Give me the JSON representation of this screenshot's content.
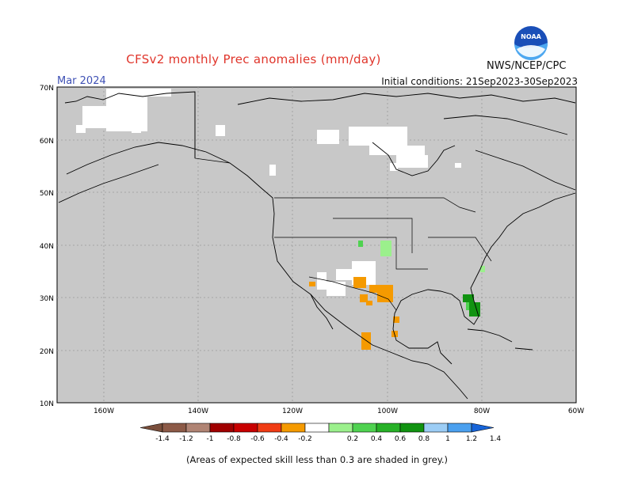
{
  "header": {
    "title": "CFSv2 monthly Prec anomalies (mm/day)",
    "agency": "NWS/NCEP/CPC",
    "logo_text": "NOAA",
    "target_month": "Mar 2024",
    "initial_conditions": "Initial conditions: 21Sep2023-30Sep2023"
  },
  "map": {
    "lat_labels": [
      "70N",
      "60N",
      "50N",
      "40N",
      "30N",
      "20N",
      "10N"
    ],
    "lon_labels": [
      "160W",
      "140W",
      "120W",
      "100W",
      "80W",
      "60W"
    ],
    "land_color": "#c8c8c8",
    "no_skill_color": "#c8c8c8",
    "water_color": "#c8c8c8"
  },
  "legend": {
    "labels": [
      "-1.4",
      "-1.2",
      "-1",
      "-0.8",
      "-0.6",
      "-0.4",
      "-0.2",
      "0.2",
      "0.4",
      "0.6",
      "0.8",
      "1",
      "1.2",
      "1.4"
    ],
    "colors": [
      "#7a4f3c",
      "#8c5a47",
      "#b08474",
      "#a00000",
      "#c80000",
      "#f03c14",
      "#f59a00",
      "#ffffff",
      "#9bf08c",
      "#4fd250",
      "#27b127",
      "#119311",
      "#9ccdf5",
      "#4ba0ef",
      "#1764d8"
    ]
  },
  "footer": {
    "note": "(Areas of expected skill less than 0.3 are shaded in grey.)"
  }
}
